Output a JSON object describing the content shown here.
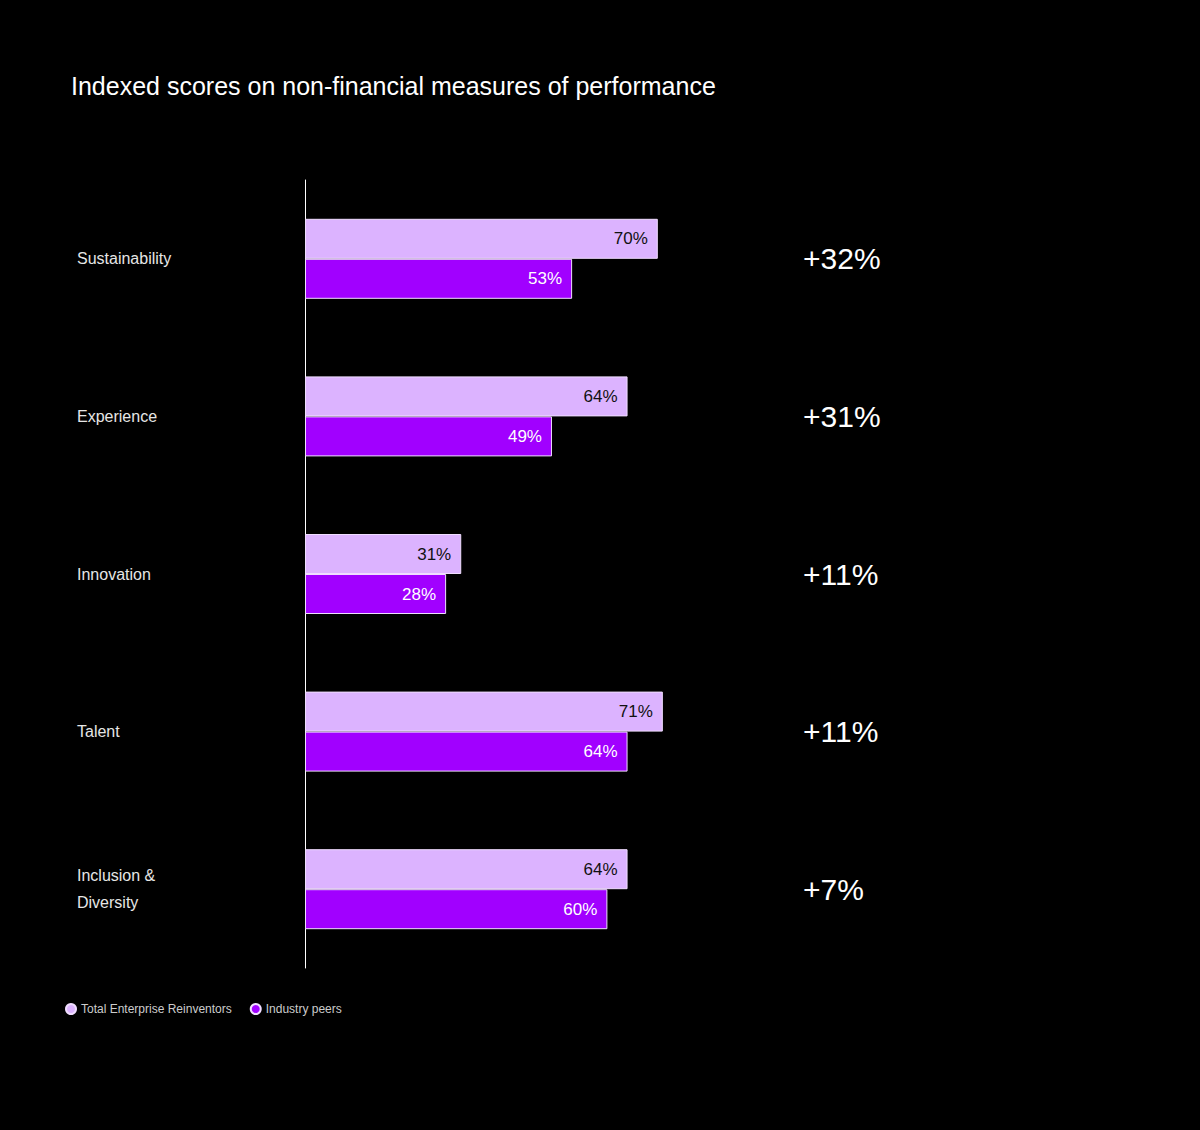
{
  "chart_data": {
    "type": "bar",
    "title": "Indexed scores on non-financial measures of performance",
    "orientation": "horizontal",
    "categories": [
      "Sustainability",
      "Experience",
      "Innovation",
      "Talent",
      "Inclusion & Diversity"
    ],
    "series": [
      {
        "name": "Total Enterprise Reinventors",
        "color": "#dcb3ff",
        "values": [
          70,
          64,
          31,
          71,
          64
        ],
        "value_labels": [
          "70%",
          "64%",
          "31%",
          "71%",
          "64%"
        ]
      },
      {
        "name": "Industry peers",
        "color": "#a100ff",
        "values": [
          53,
          49,
          28,
          64,
          60
        ],
        "value_labels": [
          "53%",
          "49%",
          "28%",
          "64%",
          "60%"
        ]
      }
    ],
    "annotations": [
      "+32%",
      "+31%",
      "+11%",
      "+11%",
      "+7%"
    ],
    "xlim": [
      0,
      100
    ],
    "data_labels": true,
    "tick_labels": "y",
    "grid": false,
    "legend": "bottom-left"
  }
}
